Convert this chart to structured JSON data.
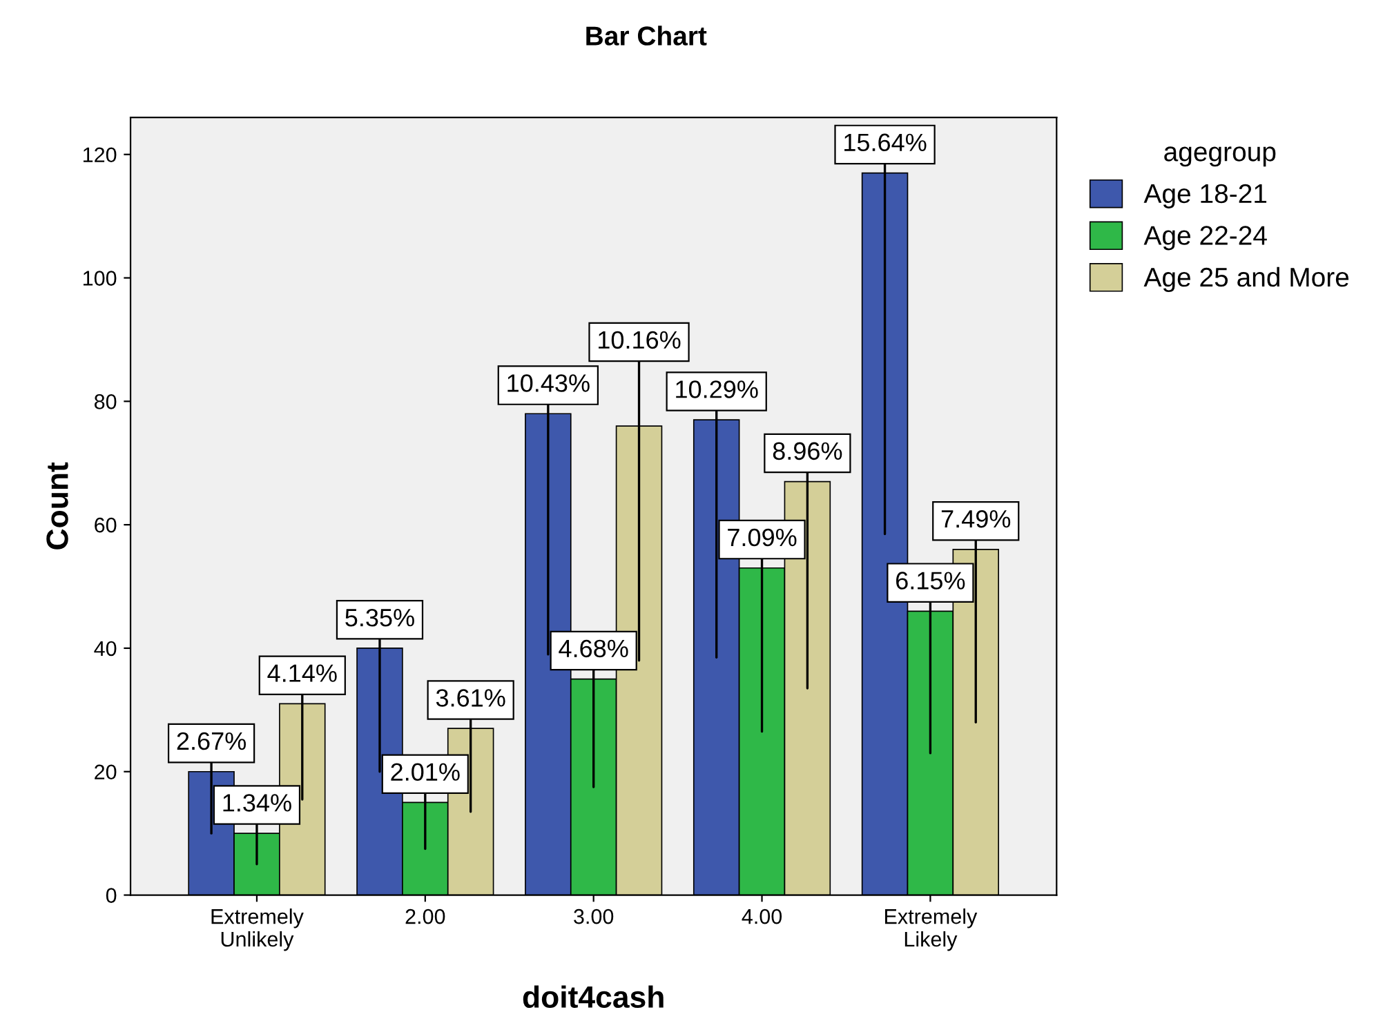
{
  "chart_data": {
    "type": "bar",
    "title": "Bar Chart",
    "xlabel": "doit4cash",
    "ylabel": "Count",
    "legend_title": "agegroup",
    "legend": "top right",
    "categories": [
      "Extremely\nUnlikely",
      "2.00",
      "3.00",
      "4.00",
      "Extremely\nLikely"
    ],
    "series": [
      {
        "name": "Age 18-21",
        "color": "#3e58ac",
        "values": [
          20,
          40,
          78,
          77,
          117
        ]
      },
      {
        "name": "Age 22-24",
        "color": "#2fb848",
        "values": [
          10,
          15,
          35,
          53,
          46
        ]
      },
      {
        "name": "Age 25 and More",
        "color": "#d4cf98",
        "values": [
          31,
          27,
          76,
          67,
          56
        ]
      }
    ],
    "annotations": [
      "2.67%",
      "5.35%",
      "10.43%",
      "10.29%",
      "15.64%",
      "1.34%",
      "2.01%",
      "4.68%",
      "7.09%",
      "6.15%",
      "4.14%",
      "3.61%",
      "10.16%",
      "8.96%",
      "7.49%"
    ],
    "ylim": [
      0,
      126
    ],
    "yticks": [
      0,
      20,
      40,
      60,
      80,
      100,
      120
    ],
    "grid": false
  }
}
